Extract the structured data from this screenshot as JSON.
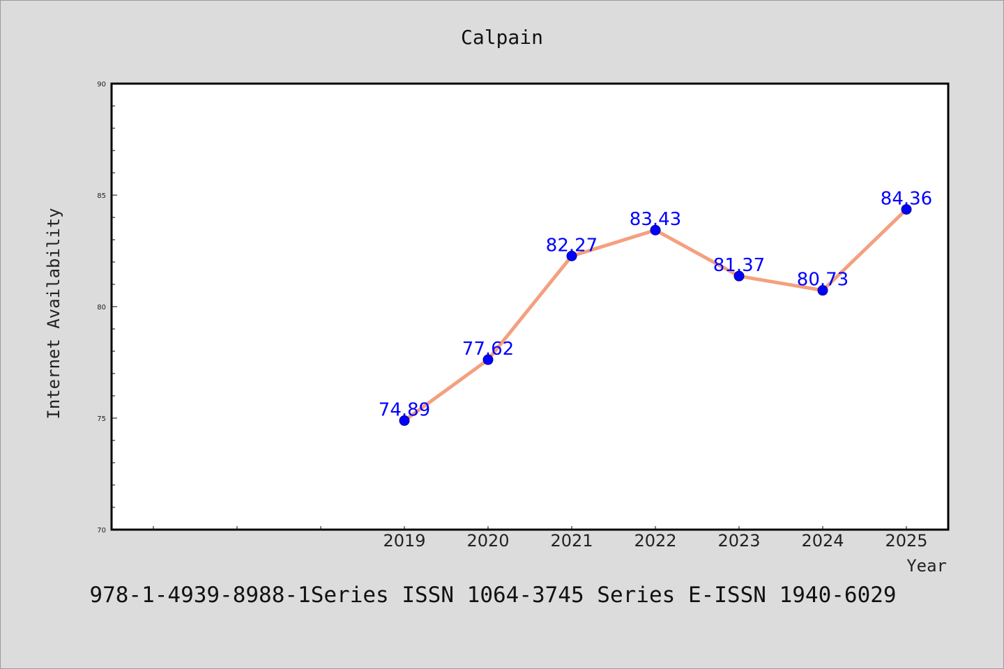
{
  "chart_data": {
    "type": "line",
    "title": "Calpain",
    "xlabel": "Year",
    "ylabel": "Internet Availability",
    "categories": [
      "2019",
      "2020",
      "2021",
      "2022",
      "2023",
      "2024",
      "2025"
    ],
    "series": [
      {
        "values": [
          74.89,
          77.62,
          82.27,
          83.43,
          81.37,
          80.73,
          84.36
        ]
      }
    ],
    "data_labels": [
      "74.89",
      "77.62",
      "82.27",
      "83.43",
      "81.37",
      "80.73",
      "84.36"
    ],
    "ylim": [
      70,
      90
    ],
    "yticks": [
      "70",
      "75",
      "80",
      "85",
      "90"
    ],
    "grid": false,
    "colors": {
      "background": "#dcdcdc",
      "plot_bg": "#ffffff",
      "line": "#f4a07f",
      "marker": "#0000ff",
      "label": "#0000ff"
    }
  },
  "footer": "978-1-4939-8988-1Series ISSN 1064-3745 Series E-ISSN 1940-6029"
}
